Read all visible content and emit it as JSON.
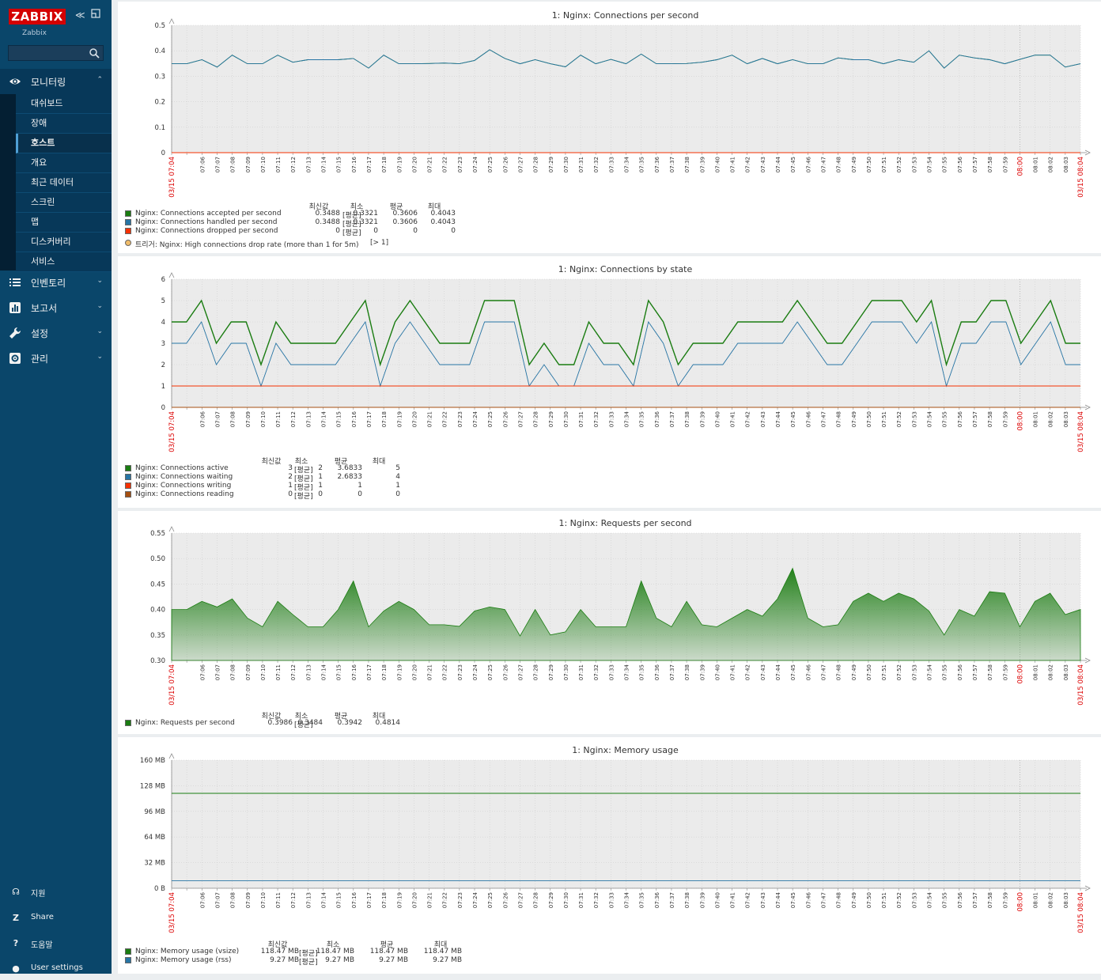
{
  "sidebar": {
    "logo": "ZABBIX",
    "instance": "Zabbix",
    "search_placeholder": "",
    "monitoring": {
      "label": "모니터링",
      "items": [
        {
          "label": "대쉬보드"
        },
        {
          "label": "장애"
        },
        {
          "label": "호스트",
          "selected": true
        },
        {
          "label": "개요"
        },
        {
          "label": "최근 데이터"
        },
        {
          "label": "스크린"
        },
        {
          "label": "맵"
        },
        {
          "label": "디스커버리"
        },
        {
          "label": "서비스"
        }
      ]
    },
    "menus": [
      {
        "label": "인벤토리",
        "icon": "list-icon"
      },
      {
        "label": "보고서",
        "icon": "bar-chart-icon"
      },
      {
        "label": "설정",
        "icon": "wrench-icon"
      },
      {
        "label": "관리",
        "icon": "gear-icon"
      }
    ],
    "bottom": [
      {
        "label": "지원",
        "icon": "headset-icon",
        "glyph": "☊"
      },
      {
        "label": "Share",
        "icon": "zabbix-share-icon",
        "glyph": "Z"
      },
      {
        "label": "도움말",
        "icon": "help-icon",
        "glyph": "?"
      },
      {
        "label": "User settings",
        "icon": "user-icon",
        "glyph": "●"
      }
    ]
  },
  "axis": {
    "start_label": "03/15 07:04",
    "end_label": "03/15 08:04",
    "hour_label": "08:00",
    "minute_labels": [
      "07:06",
      "07:07",
      "07:08",
      "07:09",
      "07:10",
      "07:11",
      "07:12",
      "07:13",
      "07:14",
      "07:15",
      "07:16",
      "07:17",
      "07:18",
      "07:19",
      "07:20",
      "07:21",
      "07:22",
      "07:23",
      "07:24",
      "07:25",
      "07:26",
      "07:27",
      "07:28",
      "07:29",
      "07:30",
      "07:31",
      "07:32",
      "07:33",
      "07:34",
      "07:35",
      "07:36",
      "07:37",
      "07:38",
      "07:39",
      "07:40",
      "07:41",
      "07:42",
      "07:43",
      "07:44",
      "07:45",
      "07:46",
      "07:47",
      "07:48",
      "07:49",
      "07:50",
      "07:51",
      "07:52",
      "07:53",
      "07:54",
      "07:55",
      "07:56",
      "07:57",
      "07:58",
      "07:59",
      "08:00",
      "08:01",
      "08:02",
      "08:03",
      "08:04"
    ]
  },
  "legend_headers": {
    "last": "최신값",
    "min": "최소",
    "avg": "평균",
    "max": "최대"
  },
  "colors": {
    "green": "#1a7c11",
    "blue": "#2774a4",
    "red": "#f63100",
    "brown": "#a54f10",
    "grid_bg": "#ebebeb",
    "trigger": "#f0bc6a"
  },
  "chart_data": [
    {
      "type": "line",
      "title": "1: Nginx: Connections per second",
      "ylim": [
        0,
        0.5
      ],
      "yticks": [
        "0",
        "0.1",
        "0.2",
        "0.3",
        "0.4",
        "0.5"
      ],
      "series": [
        {
          "name": "Nginx: Connections accepted per second",
          "color": "#1a7c11",
          "func": "[평균]",
          "last": "0.3488",
          "min": "0.3321",
          "avg": "0.3606",
          "max": "0.4043",
          "values": [
            0.349,
            0.349,
            0.365,
            0.336,
            0.383,
            0.349,
            0.349,
            0.383,
            0.355,
            0.365,
            0.365,
            0.365,
            0.37,
            0.332,
            0.383,
            0.349,
            0.349,
            0.35,
            0.352,
            0.349,
            0.362,
            0.404,
            0.37,
            0.349,
            0.365,
            0.349,
            0.337,
            0.383,
            0.349,
            0.366,
            0.349,
            0.387,
            0.349,
            0.349,
            0.35,
            0.355,
            0.365,
            0.383,
            0.349,
            0.37,
            0.349,
            0.365,
            0.349,
            0.349,
            0.372,
            0.365,
            0.365,
            0.349,
            0.365,
            0.355,
            0.4,
            0.332,
            0.383,
            0.372,
            0.365,
            0.349,
            0.366,
            0.383,
            0.383,
            0.336,
            0.349
          ]
        },
        {
          "name": "Nginx: Connections handled per second",
          "color": "#2774a4",
          "func": "[평균]",
          "last": "0.3488",
          "min": "0.3321",
          "avg": "0.3606",
          "max": "0.4043",
          "values": [
            0.349,
            0.349,
            0.365,
            0.336,
            0.383,
            0.349,
            0.349,
            0.383,
            0.355,
            0.365,
            0.365,
            0.365,
            0.37,
            0.332,
            0.383,
            0.349,
            0.349,
            0.35,
            0.352,
            0.349,
            0.362,
            0.404,
            0.37,
            0.349,
            0.365,
            0.349,
            0.337,
            0.383,
            0.349,
            0.366,
            0.349,
            0.387,
            0.349,
            0.349,
            0.35,
            0.355,
            0.365,
            0.383,
            0.349,
            0.37,
            0.349,
            0.365,
            0.349,
            0.349,
            0.372,
            0.365,
            0.365,
            0.349,
            0.365,
            0.355,
            0.4,
            0.332,
            0.383,
            0.372,
            0.365,
            0.349,
            0.366,
            0.383,
            0.383,
            0.336,
            0.349
          ]
        },
        {
          "name": "Nginx: Connections dropped per second",
          "color": "#f63100",
          "func": "[평균]",
          "last": "0",
          "min": "0",
          "avg": "0",
          "max": "0",
          "values": [
            0,
            0
          ]
        }
      ],
      "trigger": {
        "label": "트리거: Nginx: High connections drop rate (more than 1 for 5m)",
        "suffix": "[> 1]"
      }
    },
    {
      "type": "line",
      "title": "1: Nginx: Connections by state",
      "ylim": [
        0,
        6
      ],
      "yticks": [
        "0",
        "1",
        "2",
        "3",
        "4",
        "5",
        "6"
      ],
      "series": [
        {
          "name": "Nginx: Connections active",
          "color": "#1a7c11",
          "func": "[평균]",
          "last": "3",
          "min": "2",
          "avg": "3.6833",
          "max": "5",
          "values": [
            4,
            4,
            5,
            3,
            4,
            4,
            2,
            4,
            3,
            3,
            3,
            3,
            4,
            5,
            2,
            4,
            5,
            4,
            3,
            3,
            3,
            5,
            5,
            5,
            2,
            3,
            2,
            2,
            4,
            3,
            3,
            2,
            5,
            4,
            2,
            3,
            3,
            3,
            4,
            4,
            4,
            4,
            5,
            4,
            3,
            3,
            4,
            5,
            5,
            5,
            4,
            5,
            2,
            4,
            4,
            5,
            5,
            3,
            4,
            5,
            3,
            3
          ]
        },
        {
          "name": "Nginx: Connections waiting",
          "color": "#2774a4",
          "func": "[평균]",
          "last": "2",
          "min": "1",
          "avg": "2.6833",
          "max": "4",
          "values": [
            3,
            3,
            4,
            2,
            3,
            3,
            1,
            3,
            2,
            2,
            2,
            2,
            3,
            4,
            1,
            3,
            4,
            3,
            2,
            2,
            2,
            4,
            4,
            4,
            1,
            2,
            1,
            1,
            3,
            2,
            2,
            1,
            4,
            3,
            1,
            2,
            2,
            2,
            3,
            3,
            3,
            3,
            4,
            3,
            2,
            2,
            3,
            4,
            4,
            4,
            3,
            4,
            1,
            3,
            3,
            4,
            4,
            2,
            3,
            4,
            2,
            2
          ]
        },
        {
          "name": "Nginx: Connections writing",
          "color": "#f63100",
          "func": "[평균]",
          "last": "1",
          "min": "1",
          "avg": "1",
          "max": "1",
          "values": [
            1,
            1
          ]
        },
        {
          "name": "Nginx: Connections reading",
          "color": "#a54f10",
          "func": "[평균]",
          "last": "0",
          "min": "0",
          "avg": "0",
          "max": "0",
          "values": [
            0,
            0
          ]
        }
      ]
    },
    {
      "type": "area",
      "title": "1: Nginx: Requests per second",
      "ylim": [
        0.3,
        0.55
      ],
      "yticks": [
        "0.30",
        "0.35",
        "0.40",
        "0.45",
        "0.50",
        "0.55"
      ],
      "series": [
        {
          "name": "Nginx: Requests per second",
          "color": "#1a7c11",
          "func": "[평균]",
          "last": "0.3986",
          "min": "0.3484",
          "avg": "0.3942",
          "max": "0.4814",
          "values": [
            0.4,
            0.4,
            0.416,
            0.405,
            0.421,
            0.383,
            0.366,
            0.416,
            0.39,
            0.366,
            0.366,
            0.4,
            0.456,
            0.366,
            0.397,
            0.416,
            0.4,
            0.37,
            0.37,
            0.367,
            0.397,
            0.405,
            0.4,
            0.348,
            0.4,
            0.35,
            0.356,
            0.4,
            0.366,
            0.366,
            0.366,
            0.456,
            0.383,
            0.366,
            0.416,
            0.37,
            0.366,
            0.383,
            0.4,
            0.387,
            0.421,
            0.481,
            0.383,
            0.366,
            0.37,
            0.416,
            0.432,
            0.416,
            0.432,
            0.421,
            0.397,
            0.35,
            0.4,
            0.387,
            0.435,
            0.432,
            0.366,
            0.416,
            0.432,
            0.39,
            0.4
          ]
        }
      ]
    },
    {
      "type": "line",
      "title": "1: Nginx: Memory usage",
      "ylim": [
        0,
        160
      ],
      "yticks": [
        "0 B",
        "32 MB",
        "64 MB",
        "96 MB",
        "128 MB",
        "160 MB"
      ],
      "series": [
        {
          "name": "Nginx: Memory usage (vsize)",
          "color": "#1a7c11",
          "func": "[평균]",
          "last": "118.47 MB",
          "min": "118.47 MB",
          "avg": "118.47 MB",
          "max": "118.47 MB",
          "values": [
            118.47,
            118.47
          ]
        },
        {
          "name": "Nginx: Memory usage (rss)",
          "color": "#2774a4",
          "func": "[평균]",
          "last": "9.27 MB",
          "min": "9.27 MB",
          "avg": "9.27 MB",
          "max": "9.27 MB",
          "values": [
            9.27,
            9.27
          ]
        }
      ]
    }
  ]
}
